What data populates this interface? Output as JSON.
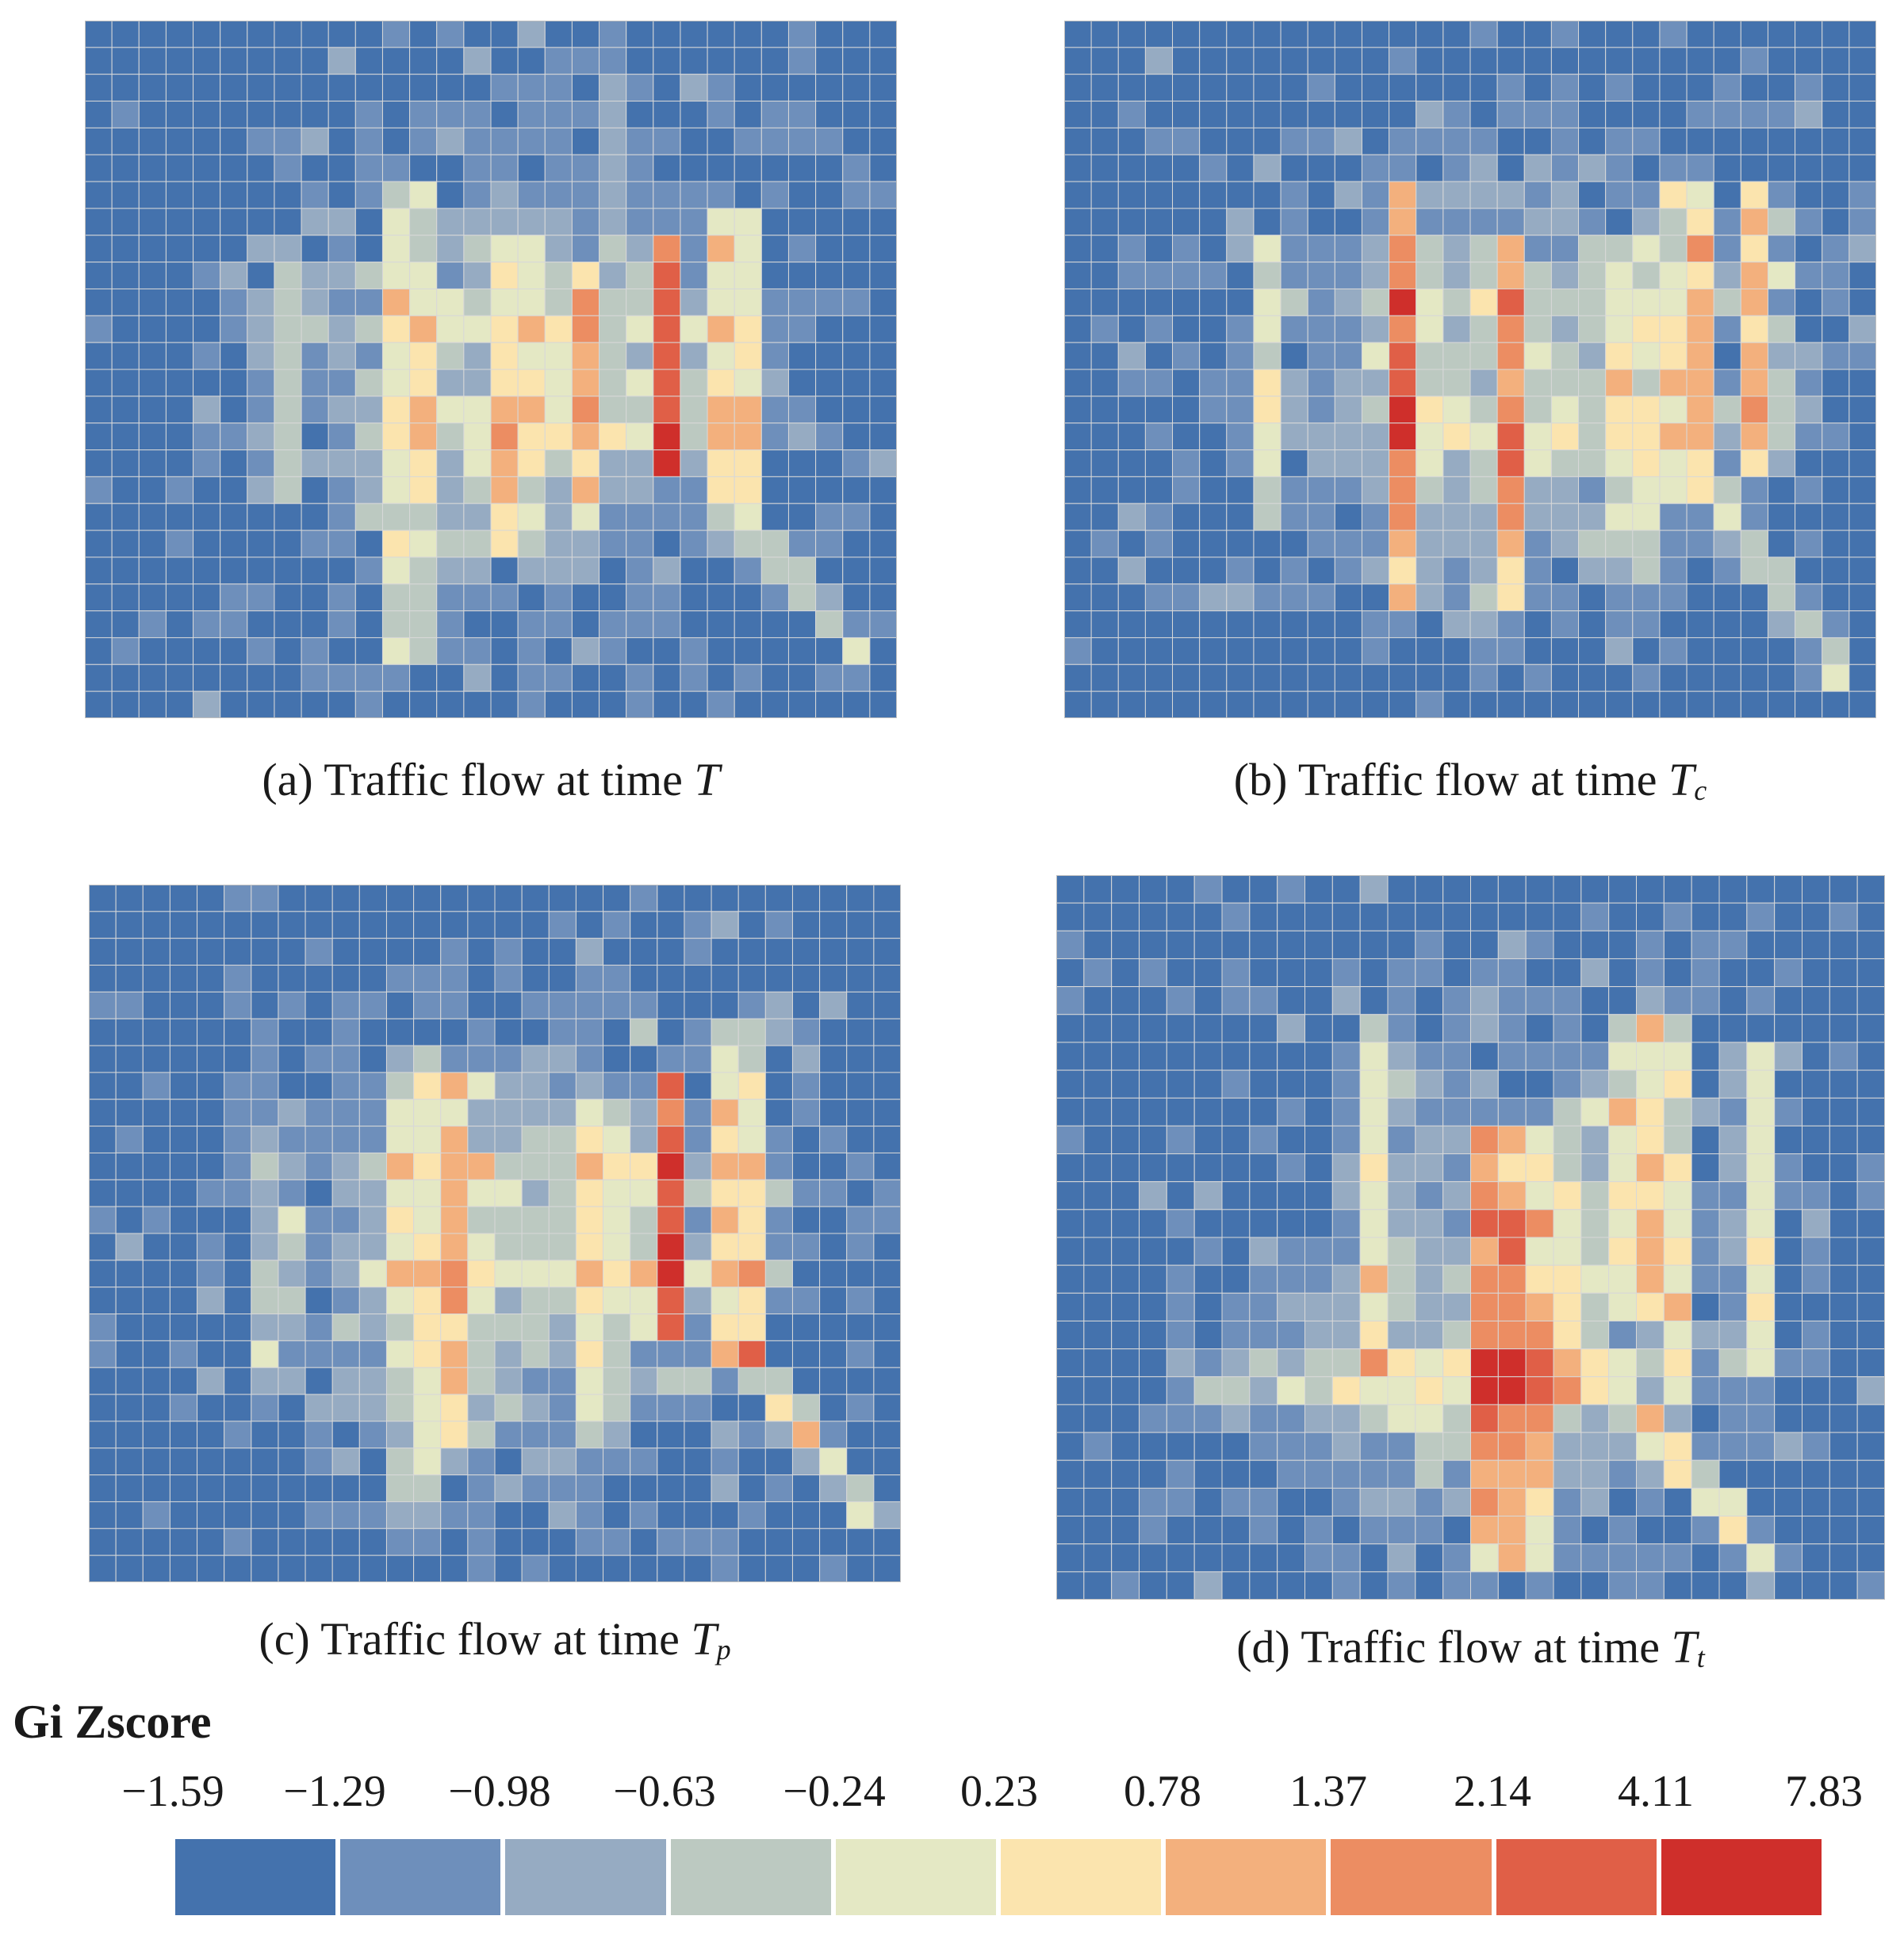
{
  "chart_data": {
    "type": "heatmap",
    "legend": {
      "title": "Gi Zscore",
      "breaks": [
        "−1.59",
        "−1.29",
        "−0.98",
        "−0.63",
        "−0.24",
        "0.23",
        "0.78",
        "1.37",
        "2.14",
        "4.11",
        "7.83"
      ],
      "colors": [
        "#4472ad",
        "#6e8fbb",
        "#96abc2",
        "#bcc9c1",
        "#e4e8c4",
        "#fbe4ae",
        "#f3b07d",
        "#ec8d62",
        "#e05f47",
        "#cf2f2b"
      ]
    },
    "panels": [
      {
        "letter": "(a)",
        "caption": "Traffic flow at time",
        "var": "T",
        "sub": "",
        "cols": 30,
        "rows": 26
      },
      {
        "letter": "(b)",
        "caption": "Traffic flow at time",
        "var": "T",
        "sub": "c",
        "cols": 30,
        "rows": 26
      },
      {
        "letter": "(c)",
        "caption": "Traffic flow at time",
        "var": "T",
        "sub": "p",
        "cols": 30,
        "rows": 26
      },
      {
        "letter": "(d)",
        "caption": "Traffic flow at time",
        "var": "T",
        "sub": "t",
        "cols": 30,
        "rows": 26
      }
    ]
  }
}
